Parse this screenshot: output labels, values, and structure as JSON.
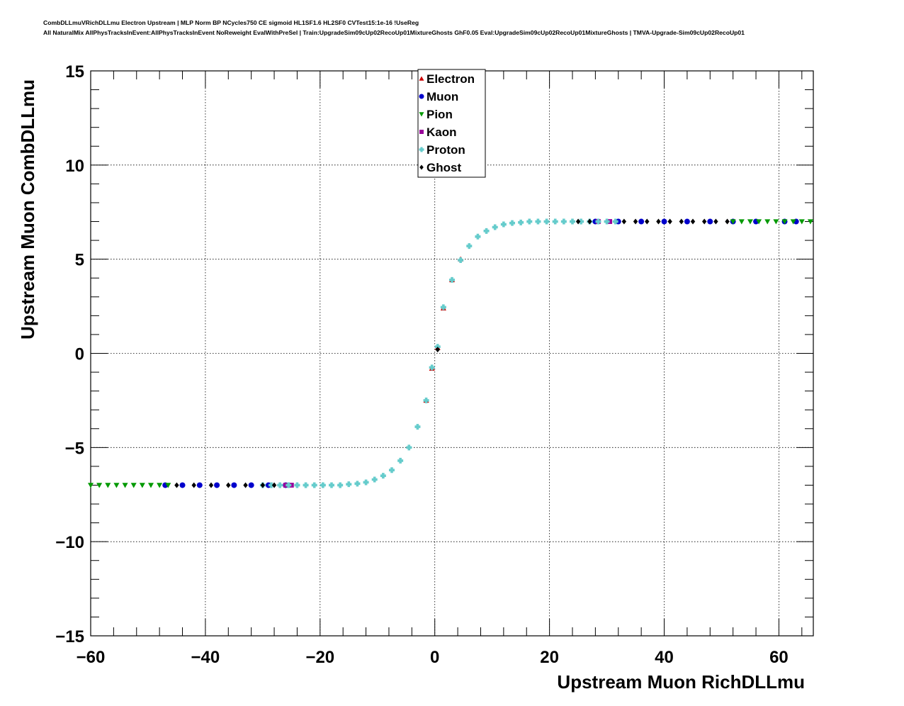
{
  "header": {
    "title_line1": "CombDLLmuVRichDLLmu Electron Upstream | MLP Norm BP NCycles750 CE sigmoid HL1SF1.6 HL2SF0 CVTest15:1e-16 !UseReg",
    "title_line2": "All NaturalMix AllPhysTracksInEvent:AllPhysTracksInEvent NoReweight EvalWithPreSel | Train:UpgradeSim09cUp02RecoUp01MixtureGhosts GhF0.05 Eval:UpgradeSim09cUp02RecoUp01MixtureGhosts | TMVA-Upgrade-Sim09cUp02RecoUp01"
  },
  "chart_data": {
    "type": "scatter",
    "xlabel": "Upstream Muon RichDLLmu",
    "ylabel": "Upstream Muon CombDLLmu",
    "xlim": [
      -60,
      66
    ],
    "ylim": [
      -15,
      15
    ],
    "xticks": [
      -60,
      -40,
      -20,
      0,
      20,
      40,
      60
    ],
    "yticks": [
      -15,
      -10,
      -5,
      0,
      5,
      10,
      15
    ],
    "xtick_labels": [
      "−60",
      "−40",
      "−20",
      "0",
      "20",
      "40",
      "60"
    ],
    "ytick_labels": [
      "−15",
      "−10",
      "−5",
      "0",
      "5",
      "10",
      "15"
    ],
    "grid": true,
    "legend_position": "top-center",
    "series": [
      {
        "name": "Electron",
        "color": "#cc0000",
        "marker": "triangle-up",
        "x": [
          -1.5,
          -0.5,
          0.5,
          1.5,
          3.0,
          4.5
        ],
        "y": [
          -2.5,
          -0.8,
          0.3,
          2.4,
          3.9,
          5.0
        ]
      },
      {
        "name": "Muon",
        "color": "#0000cc",
        "marker": "circle",
        "x": [
          -47,
          -44,
          -41,
          -38,
          -35,
          -32,
          -29,
          -26,
          28,
          32,
          36,
          40,
          44,
          48,
          52,
          56,
          61,
          63
        ],
        "y": [
          -7.0,
          -7.0,
          -7.0,
          -7.0,
          -7.0,
          -7.0,
          -7.0,
          -7.0,
          7.0,
          7.0,
          7.0,
          7.0,
          7.0,
          7.0,
          7.0,
          7.0,
          7.0,
          7.0
        ]
      },
      {
        "name": "Pion",
        "color": "#009900",
        "marker": "triangle-down",
        "x": [
          -60,
          -58.5,
          -57,
          -55.5,
          -54,
          -52.5,
          -51,
          -49.5,
          -48,
          -46.5,
          52,
          53.5,
          55,
          56.5,
          58,
          59.5,
          61,
          62.5,
          64,
          65.5
        ],
        "y": [
          -7.0,
          -7.0,
          -7.0,
          -7.0,
          -7.0,
          -7.0,
          -7.0,
          -7.0,
          -7.0,
          -7.0,
          7.0,
          7.0,
          7.0,
          7.0,
          7.0,
          7.0,
          7.0,
          7.0,
          7.0,
          7.0
        ]
      },
      {
        "name": "Kaon",
        "color": "#990099",
        "marker": "square",
        "x": [
          -26,
          -25,
          28.5,
          30.5
        ],
        "y": [
          -7.0,
          -7.0,
          7.0,
          7.0
        ]
      },
      {
        "name": "Proton",
        "color": "#66cccc",
        "marker": "cross",
        "x": [
          -30,
          -28.5,
          -27,
          -25.5,
          -24,
          -22.5,
          -21,
          -19.5,
          -18,
          -16.5,
          -15,
          -13.5,
          -12,
          -10.5,
          -9,
          -7.5,
          -6,
          -4.5,
          -3,
          -1.5,
          -0.5,
          0.5,
          1.5,
          3,
          4.5,
          6,
          7.5,
          9,
          10.5,
          12,
          13.5,
          15,
          16.5,
          18,
          19.5,
          21,
          22.5,
          24,
          25.5,
          27,
          28.5,
          30,
          31.5
        ],
        "y": [
          -7.0,
          -7.0,
          -7.0,
          -7.0,
          -7.0,
          -7.0,
          -7.0,
          -7.0,
          -7.0,
          -7.0,
          -6.95,
          -6.92,
          -6.85,
          -6.7,
          -6.5,
          -6.2,
          -5.7,
          -5.0,
          -3.9,
          -2.5,
          -0.75,
          0.35,
          2.45,
          3.9,
          4.95,
          5.7,
          6.2,
          6.5,
          6.7,
          6.85,
          6.92,
          6.95,
          7.0,
          7.0,
          7.0,
          7.0,
          7.0,
          7.0,
          7.0,
          7.0,
          7.0,
          7.0,
          7.0
        ]
      },
      {
        "name": "Ghost",
        "color": "#000000",
        "marker": "diamond",
        "x": [
          -45,
          -42,
          -39,
          -36,
          -33,
          -30,
          -28,
          0.5,
          25,
          27,
          33,
          35,
          37,
          39,
          41,
          43,
          45,
          47,
          49,
          51
        ],
        "y": [
          -7.0,
          -7.0,
          -7.0,
          -7.0,
          -7.0,
          -7.0,
          -7.0,
          0.2,
          7.0,
          7.0,
          7.0,
          7.0,
          7.0,
          7.0,
          7.0,
          7.0,
          7.0,
          7.0,
          7.0,
          7.0
        ]
      }
    ]
  }
}
